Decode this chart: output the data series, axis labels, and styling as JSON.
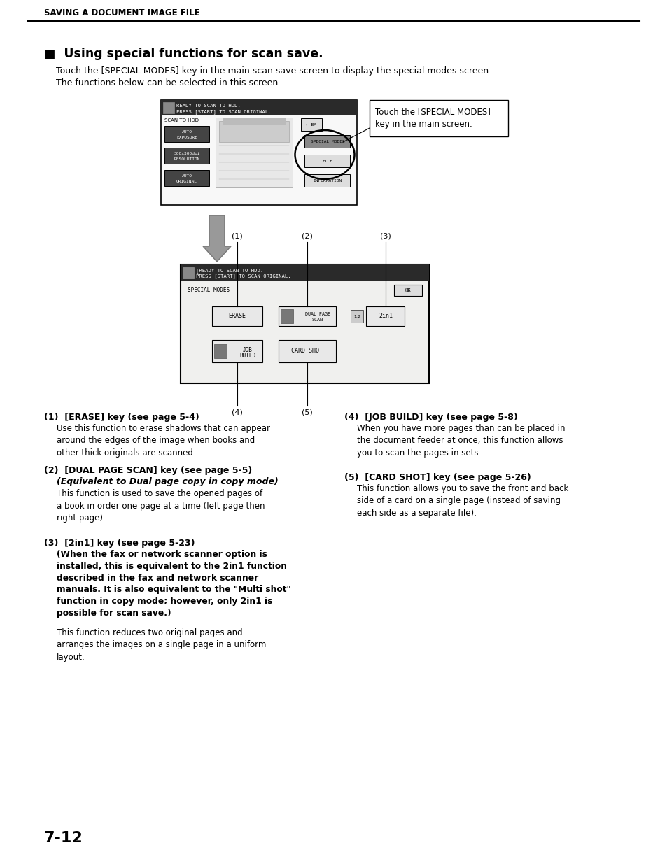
{
  "bg_color": "#ffffff",
  "header_text": "SAVING A DOCUMENT IMAGE FILE",
  "title_text": "■  Using special functions for scan save.",
  "subtitle_line1": "Touch the [SPECIAL MODES] key in the main scan save screen to display the special modes screen.",
  "subtitle_line2": "The functions below can be selected in this screen.",
  "callout_text": "Touch the [SPECIAL MODES]\nkey in the main screen.",
  "section1_header": "(1)  [ERASE] key (see page 5-4)",
  "section1_body": "Use this function to erase shadows that can appear\naround the edges of the image when books and\nother thick originals are scanned.",
  "section2_header": "(2)  [DUAL PAGE SCAN] key (see page 5-5)",
  "section2_subheader": "(Equivalent to Dual page copy in copy mode)",
  "section2_body": "This function is used to save the opened pages of\na book in order one page at a time (left page then\nright page).",
  "section3_header": "(3)  [2in1] key (see page 5-23)",
  "section3_subheader": "(When the fax or network scanner option is\ninstalled, this is equivalent to the 2in1 function\ndescribed in the fax and network scanner\nmanuals. It is also equivalent to the \"Multi shot\"\nfunction in copy mode; however, only 2in1 is\npossible for scan save.)",
  "section3_body": "This function reduces two original pages and\narranges the images on a single page in a uniform\nlayout.",
  "section4_header": "(4)  [JOB BUILD] key (see page 5-8)",
  "section4_body": "When you have more pages than can be placed in\nthe document feeder at once, this function allows\nyou to scan the pages in sets.",
  "section5_header": "(5)  [CARD SHOT] key (see page 5-26)",
  "section5_body": "This function allows you to save the front and back\nside of a card on a single page (instead of saving\neach side as a separate file).",
  "page_number": "7-12"
}
